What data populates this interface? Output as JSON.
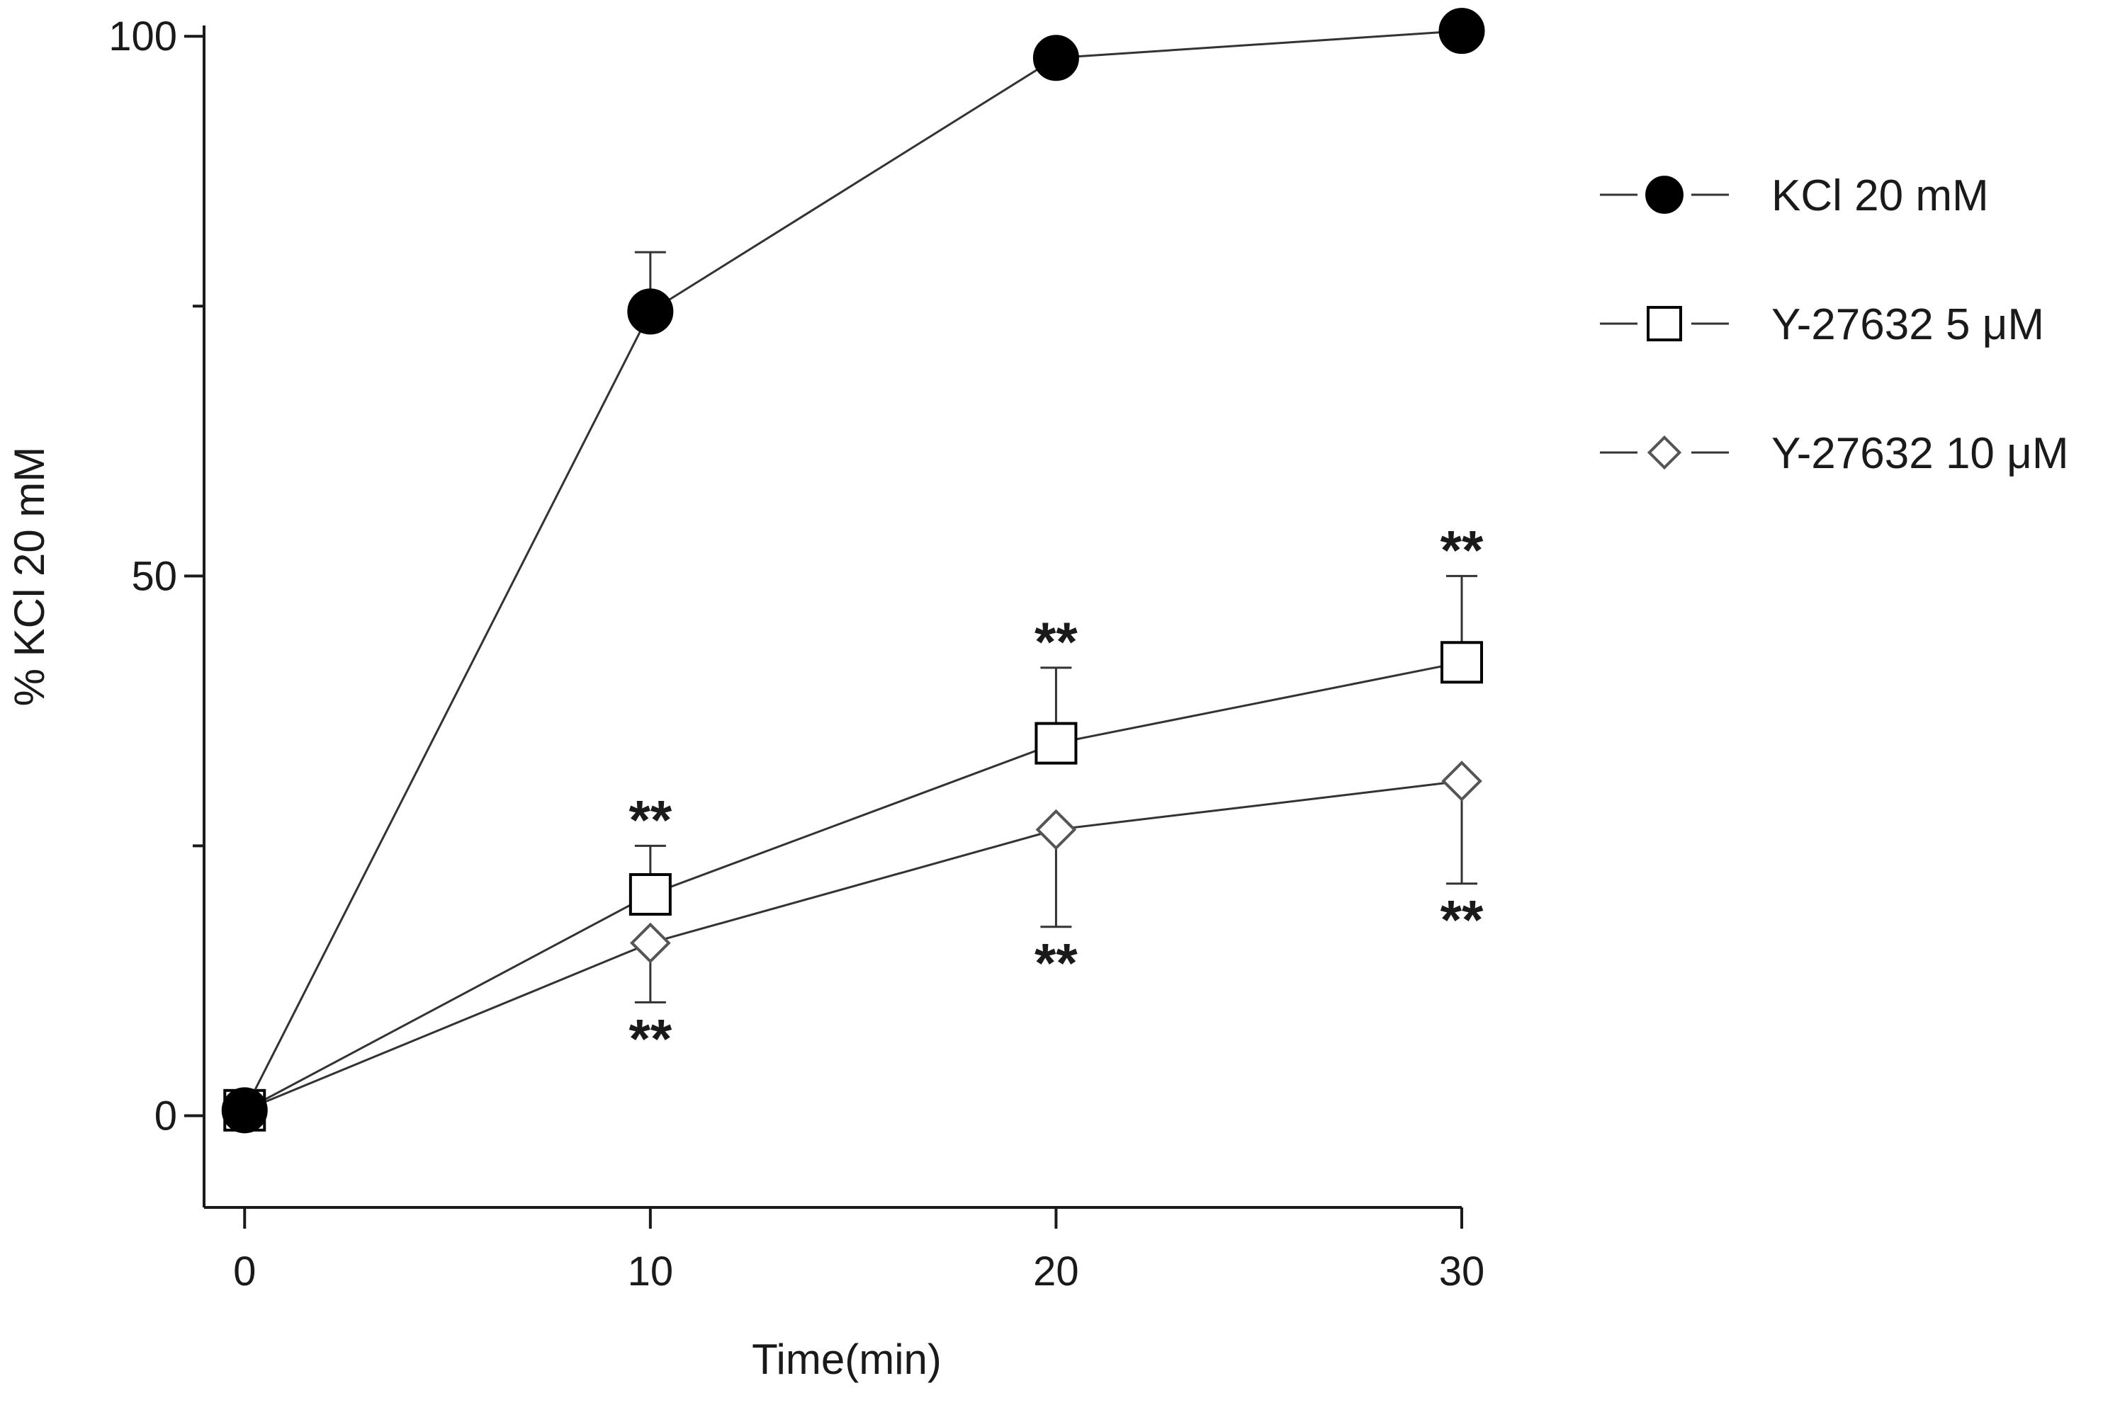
{
  "chart_data": {
    "type": "line",
    "title": "",
    "xlabel": "Time(min)",
    "ylabel": "% KCl 20 mM",
    "x": [
      0,
      10,
      20,
      30
    ],
    "x_ticks": [
      "0",
      "10",
      "20",
      "30"
    ],
    "y_ticks": [
      "0",
      "50",
      "100"
    ],
    "xlim": [
      -1,
      30
    ],
    "ylim": [
      -8.5,
      101
    ],
    "grid": false,
    "legend_position": "right",
    "series": [
      {
        "name": "KCl 20 mM",
        "marker": "filled-circle",
        "color": "#000000",
        "values": [
          0.5,
          74.5,
          98,
          100.5
        ],
        "error_upper": [
          0,
          5.5,
          0,
          0
        ],
        "error_lower": [
          0,
          0,
          0,
          0
        ],
        "significance": [
          "",
          "",
          "",
          ""
        ]
      },
      {
        "name": "Y-27632 5 μM",
        "marker": "open-square",
        "color": "#000000",
        "values": [
          0.5,
          20.5,
          34.5,
          42
        ],
        "error_upper": [
          0,
          4.5,
          7,
          8
        ],
        "error_lower": [
          0,
          0,
          0,
          0
        ],
        "significance": [
          "",
          "**",
          "**",
          "**"
        ]
      },
      {
        "name": "Y-27632 10 μM",
        "marker": "open-diamond",
        "color": "#555555",
        "values": [
          0.5,
          16,
          26.5,
          31
        ],
        "error_upper": [
          0,
          0,
          0,
          0
        ],
        "error_lower": [
          0,
          5.5,
          9,
          9.5
        ],
        "significance": [
          "",
          "**",
          "**",
          "**"
        ]
      }
    ]
  }
}
